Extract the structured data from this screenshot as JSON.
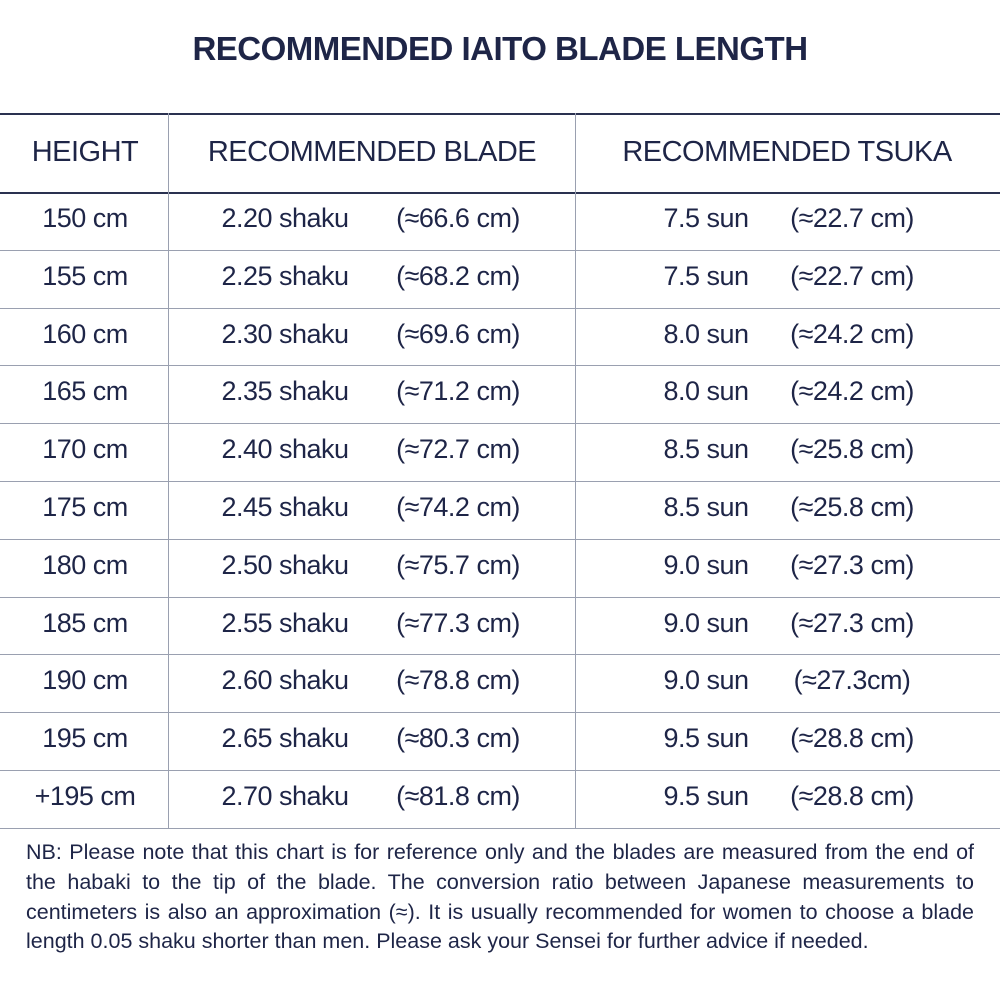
{
  "title": "RECOMMENDED IAITO BLADE LENGTH",
  "table": {
    "header": [
      "HEIGHT",
      "RECOMMENDED BLADE",
      "RECOMMENDED TSUKA"
    ],
    "rows": [
      [
        "150 cm",
        "2.20 shaku",
        "(≈66.6 cm)",
        "7.5 sun",
        "(≈22.7 cm)"
      ],
      [
        "155 cm",
        "2.25 shaku",
        "(≈68.2 cm)",
        "7.5 sun",
        "(≈22.7 cm)"
      ],
      [
        "160 cm",
        "2.30 shaku",
        "(≈69.6 cm)",
        "8.0 sun",
        "(≈24.2 cm)"
      ],
      [
        "165 cm",
        "2.35 shaku",
        "(≈71.2 cm)",
        "8.0 sun",
        "(≈24.2 cm)"
      ],
      [
        "170 cm",
        "2.40 shaku",
        "(≈72.7 cm)",
        "8.5 sun",
        "(≈25.8 cm)"
      ],
      [
        "175 cm",
        "2.45 shaku",
        "(≈74.2 cm)",
        "8.5 sun",
        "(≈25.8 cm)"
      ],
      [
        "180 cm",
        "2.50 shaku",
        "(≈75.7 cm)",
        "9.0 sun",
        "(≈27.3 cm)"
      ],
      [
        "185 cm",
        "2.55 shaku",
        "(≈77.3 cm)",
        "9.0 sun",
        "(≈27.3 cm)"
      ],
      [
        "190 cm",
        "2.60 shaku",
        "(≈78.8 cm)",
        "9.0 sun",
        "(≈27.3cm)"
      ],
      [
        "195 cm",
        "2.65 shaku",
        "(≈80.3 cm)",
        "9.5 sun",
        "(≈28.8 cm)"
      ],
      [
        "+195 cm",
        "2.70 shaku",
        "(≈81.8 cm)",
        "9.5 sun",
        "(≈28.8 cm)"
      ]
    ]
  },
  "note": "NB:  Please note that this chart is for reference only and the blades are measured from the end of the habaki to the tip of the blade. The conversion ratio between Japanese measurements to centimeters is also an approximation (≈). It is usually recommended for women to choose a blade length 0.05 shaku shorter than men. Please ask your Sensei for further advice if needed."
}
